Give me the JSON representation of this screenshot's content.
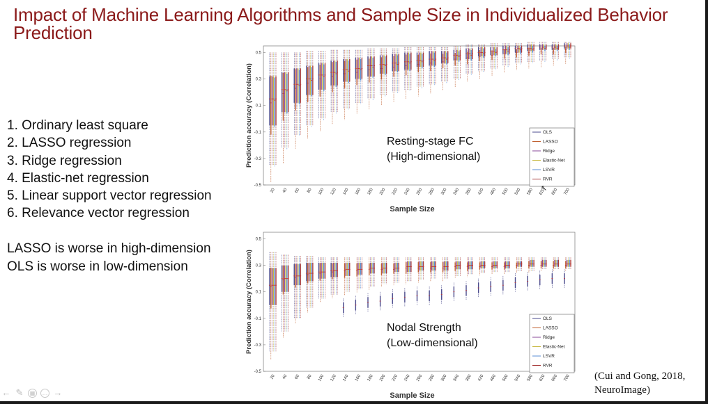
{
  "slide": {
    "title": "Impact of Machine Learning Algorithms and Sample Size in Individualized Behavior Prediction",
    "methods": [
      "1.  Ordinary least square",
      "2.  LASSO regression",
      "3.  Ridge regression",
      "4.  Elastic-net regression",
      "5.  Linear support vector regression",
      "6.  Relevance vector regression"
    ],
    "notes": [
      "LASSO is worse in high-dimension",
      "OLS is worse in low-dimension"
    ],
    "citation": "(Cui and Gong, 2018, NeuroImage)"
  },
  "nav": {
    "icons": [
      "arrow-left-icon",
      "pen-icon",
      "slides-grid-icon",
      "more-icon",
      "arrow-right-icon"
    ]
  },
  "colors": {
    "title": "#8b1a1a",
    "OLS": "#4a4a8c",
    "LASSO": "#c06030",
    "Ridge": "#8a4a9a",
    "Elastic-Net": "#c8b840",
    "LSVR": "#5a8ed6",
    "RVR": "#a83a3a"
  },
  "chart_data": [
    {
      "type": "box",
      "annotation": [
        "Resting-stage FC",
        "(High-dimensional)"
      ],
      "xlabel": "Sample Size",
      "ylabel": "Prediction accuracy (Correlation)",
      "ylim": [
        -0.5,
        0.55
      ],
      "yticks": [
        "0.5",
        "0.3",
        "0.1",
        "-0.1",
        "-0.3",
        "-0.5"
      ],
      "x": [
        20,
        40,
        60,
        80,
        100,
        120,
        140,
        160,
        180,
        200,
        220,
        240,
        260,
        280,
        300,
        340,
        380,
        420,
        460,
        500,
        540,
        580,
        620,
        660,
        700
      ],
      "legend": [
        "OLS",
        "LASSO",
        "Ridge",
        "Elastic-Net",
        "LSVR",
        "RVR"
      ],
      "legend_position": "bottom-right",
      "median": [
        0.15,
        0.22,
        0.26,
        0.3,
        0.33,
        0.35,
        0.37,
        0.38,
        0.4,
        0.41,
        0.42,
        0.43,
        0.44,
        0.45,
        0.46,
        0.48,
        0.49,
        0.5,
        0.51,
        0.52,
        0.53,
        0.53,
        0.54,
        0.54,
        0.55
      ],
      "q1": [
        -0.05,
        0.05,
        0.12,
        0.18,
        0.22,
        0.25,
        0.28,
        0.3,
        0.32,
        0.34,
        0.36,
        0.37,
        0.39,
        0.4,
        0.42,
        0.44,
        0.45,
        0.47,
        0.48,
        0.49,
        0.5,
        0.51,
        0.52,
        0.52,
        0.53
      ],
      "q3": [
        0.32,
        0.35,
        0.38,
        0.4,
        0.42,
        0.44,
        0.45,
        0.46,
        0.47,
        0.48,
        0.49,
        0.5,
        0.5,
        0.51,
        0.51,
        0.52,
        0.53,
        0.54,
        0.54,
        0.55,
        0.55,
        0.56,
        0.56,
        0.56,
        0.57
      ],
      "min": [
        -0.35,
        -0.22,
        -0.12,
        -0.05,
        0.0,
        0.05,
        0.08,
        0.12,
        0.15,
        0.18,
        0.2,
        0.22,
        0.24,
        0.26,
        0.28,
        0.3,
        0.34,
        0.36,
        0.38,
        0.4,
        0.42,
        0.43,
        0.44,
        0.45,
        0.46
      ],
      "max": [
        0.5,
        0.5,
        0.5,
        0.51,
        0.51,
        0.52,
        0.52,
        0.52,
        0.53,
        0.53,
        0.53,
        0.54,
        0.54,
        0.54,
        0.54,
        0.55,
        0.56,
        0.56,
        0.57,
        0.57,
        0.57,
        0.58,
        0.58,
        0.58,
        0.58
      ],
      "method_offsets": [
        0.0,
        -0.03,
        0.0,
        0.0,
        -0.01,
        0.0
      ],
      "method_spread": [
        1.0,
        1.2,
        1.0,
        1.0,
        1.0,
        1.0
      ]
    },
    {
      "type": "box",
      "annotation": [
        "Nodal Strength",
        "(Low-dimensional)"
      ],
      "xlabel": "Sample Size",
      "ylabel": "Prediction accuracy (Correlation)",
      "ylim": [
        -0.5,
        0.55
      ],
      "yticks": [
        "0.5",
        "0.3",
        "0.1",
        "-0.1",
        "-0.3",
        "-0.5"
      ],
      "x": [
        20,
        40,
        60,
        80,
        100,
        120,
        140,
        160,
        180,
        200,
        220,
        240,
        260,
        280,
        300,
        340,
        380,
        420,
        460,
        500,
        540,
        580,
        620,
        660,
        700
      ],
      "legend": [
        "OLS",
        "LASSO",
        "Ridge",
        "Elastic-Net",
        "LSVR",
        "RVR"
      ],
      "legend_position": "bottom-right",
      "median": [
        0.15,
        0.2,
        0.22,
        0.24,
        0.25,
        0.26,
        0.27,
        0.27,
        0.28,
        0.28,
        0.28,
        0.29,
        0.29,
        0.29,
        0.29,
        0.3,
        0.3,
        0.3,
        0.3,
        0.3,
        0.31,
        0.31,
        0.31,
        0.31,
        0.31
      ],
      "q1": [
        0.0,
        0.1,
        0.15,
        0.18,
        0.2,
        0.21,
        0.22,
        0.23,
        0.24,
        0.24,
        0.25,
        0.25,
        0.26,
        0.26,
        0.26,
        0.27,
        0.27,
        0.28,
        0.28,
        0.28,
        0.29,
        0.29,
        0.29,
        0.29,
        0.29
      ],
      "q3": [
        0.28,
        0.3,
        0.31,
        0.32,
        0.32,
        0.32,
        0.32,
        0.32,
        0.32,
        0.32,
        0.32,
        0.33,
        0.33,
        0.33,
        0.33,
        0.33,
        0.33,
        0.33,
        0.33,
        0.33,
        0.33,
        0.34,
        0.34,
        0.34,
        0.34
      ],
      "min": [
        -0.35,
        -0.2,
        -0.1,
        -0.02,
        0.05,
        0.08,
        0.1,
        0.12,
        0.14,
        0.16,
        0.17,
        0.18,
        0.19,
        0.2,
        0.2,
        0.22,
        0.23,
        0.24,
        0.25,
        0.25,
        0.26,
        0.26,
        0.27,
        0.27,
        0.27
      ],
      "max": [
        0.4,
        0.38,
        0.37,
        0.37,
        0.36,
        0.36,
        0.36,
        0.36,
        0.36,
        0.36,
        0.36,
        0.36,
        0.36,
        0.36,
        0.36,
        0.36,
        0.36,
        0.36,
        0.36,
        0.36,
        0.36,
        0.36,
        0.36,
        0.36,
        0.36
      ],
      "ols_median": [
        null,
        null,
        null,
        null,
        null,
        null,
        -0.02,
        0.0,
        0.02,
        0.03,
        0.05,
        0.06,
        0.07,
        0.07,
        0.08,
        0.1,
        0.11,
        0.13,
        0.14,
        0.15,
        0.17,
        0.18,
        0.19,
        0.2,
        0.2
      ],
      "method_offsets": [
        0.0,
        -0.01,
        0.0,
        0.0,
        0.0,
        0.0
      ],
      "method_spread": [
        1.0,
        1.1,
        1.0,
        1.0,
        1.0,
        1.0
      ]
    }
  ]
}
